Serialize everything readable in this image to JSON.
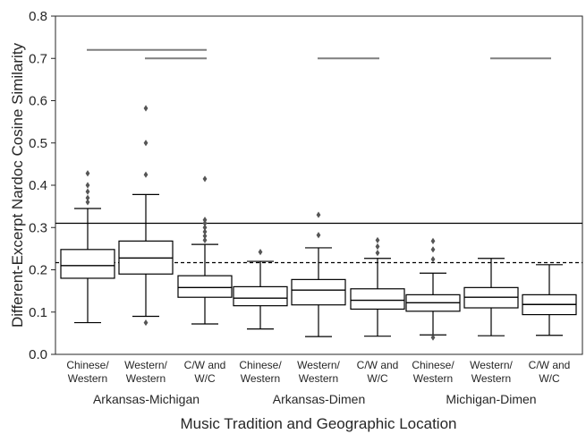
{
  "chart_data": {
    "type": "box",
    "ylabel": "Different-Excerpt Nardoc Cosine Similarity",
    "xlabel": "Music Tradition and Geographic Location",
    "ylim": [
      0,
      0.8
    ],
    "yticks": [
      "0.0",
      "0.1",
      "0.2",
      "0.3",
      "0.4",
      "0.5",
      "0.6",
      "0.7",
      "0.8"
    ],
    "groups": [
      {
        "name": "Arkansas-Michigan",
        "boxes": [
          {
            "label_line1": "Chinese/",
            "label_line2": "Western",
            "whisker_low": 0.075,
            "q1": 0.18,
            "median": 0.21,
            "q3": 0.248,
            "whisker_high": 0.345,
            "outliers": [
              0.36,
              0.37,
              0.385,
              0.4,
              0.428
            ]
          },
          {
            "label_line1": "Western/",
            "label_line2": "Western",
            "whisker_low": 0.09,
            "q1": 0.19,
            "median": 0.228,
            "q3": 0.268,
            "whisker_high": 0.378,
            "outliers": [
              0.075,
              0.425,
              0.5,
              0.582
            ]
          },
          {
            "label_line1": "C/W and",
            "label_line2": "W/C",
            "whisker_low": 0.072,
            "q1": 0.135,
            "median": 0.158,
            "q3": 0.186,
            "whisker_high": 0.26,
            "outliers": [
              0.27,
              0.28,
              0.29,
              0.3,
              0.31,
              0.318,
              0.415
            ]
          }
        ]
      },
      {
        "name": "Arkansas-Dimen",
        "boxes": [
          {
            "label_line1": "Chinese/",
            "label_line2": "Western",
            "whisker_low": 0.06,
            "q1": 0.115,
            "median": 0.133,
            "q3": 0.16,
            "whisker_high": 0.22,
            "outliers": [
              0.242
            ]
          },
          {
            "label_line1": "Western/",
            "label_line2": "Western",
            "whisker_low": 0.042,
            "q1": 0.117,
            "median": 0.152,
            "q3": 0.177,
            "whisker_high": 0.252,
            "outliers": [
              0.282,
              0.33
            ]
          },
          {
            "label_line1": "C/W and",
            "label_line2": "W/C",
            "whisker_low": 0.043,
            "q1": 0.107,
            "median": 0.128,
            "q3": 0.155,
            "whisker_high": 0.227,
            "outliers": [
              0.24,
              0.255,
              0.27
            ]
          }
        ]
      },
      {
        "name": "Michigan-Dimen",
        "boxes": [
          {
            "label_line1": "Chinese/",
            "label_line2": "Western",
            "whisker_low": 0.046,
            "q1": 0.102,
            "median": 0.122,
            "q3": 0.141,
            "whisker_high": 0.192,
            "outliers": [
              0.04,
              0.225,
              0.248,
              0.268
            ]
          },
          {
            "label_line1": "Western/",
            "label_line2": "Western",
            "whisker_low": 0.044,
            "q1": 0.11,
            "median": 0.135,
            "q3": 0.158,
            "whisker_high": 0.227,
            "outliers": []
          },
          {
            "label_line1": "C/W and",
            "label_line2": "W/C",
            "whisker_low": 0.045,
            "q1": 0.094,
            "median": 0.118,
            "q3": 0.141,
            "whisker_high": 0.212,
            "outliers": []
          }
        ]
      }
    ],
    "reference_lines": [
      {
        "style": "solid",
        "y": 0.31
      },
      {
        "style": "dashed",
        "y": 0.217
      }
    ],
    "significance_bars": [
      {
        "y": 0.72,
        "from_box": 0,
        "to_box": 2
      },
      {
        "y": 0.7,
        "from_box": 1,
        "to_box": 2
      },
      {
        "y": 0.7,
        "from_box": 4,
        "to_box": 5
      },
      {
        "y": 0.7,
        "from_box": 7,
        "to_box": 8
      }
    ],
    "grid": false,
    "colors": {
      "box_edge": "#000000",
      "box_fill": "#ffffff",
      "outlier": "#555555",
      "sig_bar": "#7f7f7f",
      "text": "#262626"
    }
  }
}
